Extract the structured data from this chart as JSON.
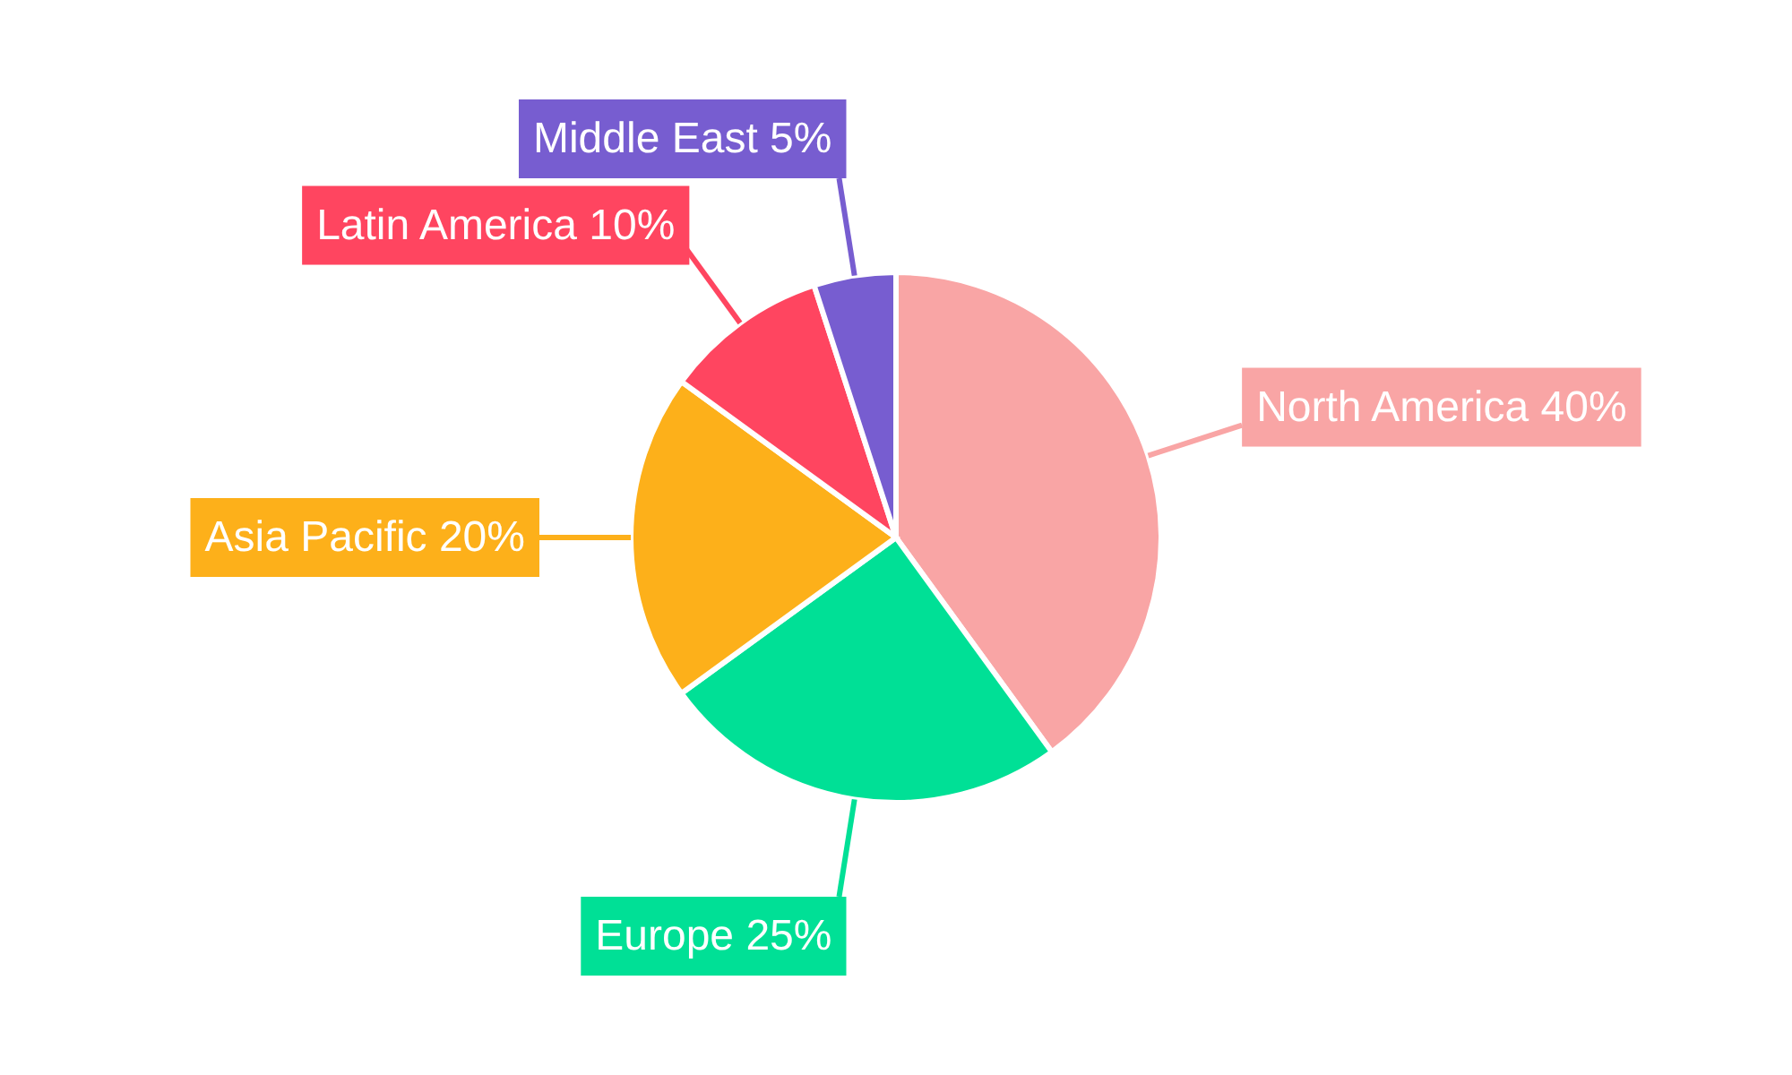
{
  "chart_data": {
    "type": "pie",
    "categories": [
      "North America",
      "Europe",
      "Asia Pacific",
      "Latin America",
      "Middle East"
    ],
    "values": [
      40,
      25,
      20,
      10,
      5
    ],
    "value_labels": [
      "40%",
      "25%",
      "20%",
      "10%",
      "5%"
    ],
    "colors": [
      "#f9a5a5",
      "#00e096",
      "#fdb01a",
      "#ff4560",
      "#775dd0"
    ]
  }
}
